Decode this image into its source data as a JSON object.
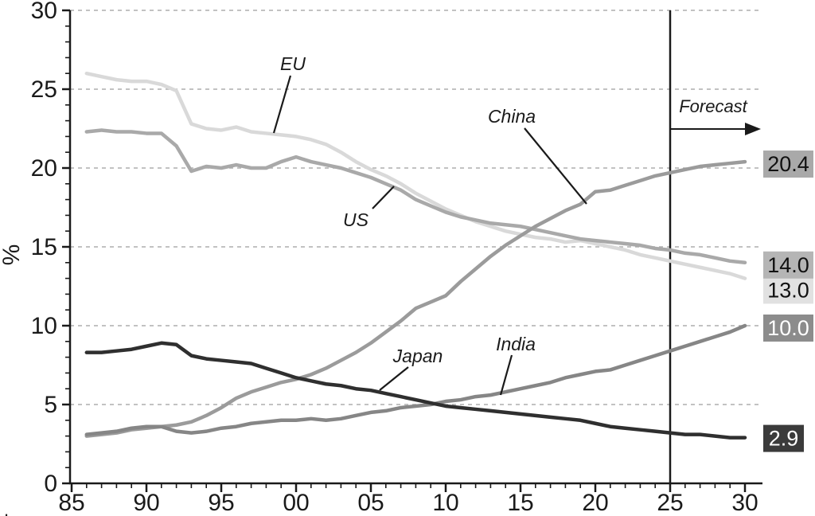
{
  "chart_data": {
    "type": "line",
    "title": "",
    "ylabel": "%",
    "xlim": [
      1985,
      2030.5
    ],
    "ylim": [
      0,
      30
    ],
    "grid": "horizontal dashed lines at 5,10,15,20,25,30",
    "legend_position": "inline annotations with pointer lines",
    "x_tick_years": [
      1985,
      1990,
      1995,
      2000,
      2005,
      2010,
      2015,
      2020,
      2025,
      2030
    ],
    "x_tick_labels": [
      "85",
      "90",
      "95",
      "00",
      "05",
      "10",
      "15",
      "20",
      "25",
      "30"
    ],
    "y_tick_values": [
      0,
      5,
      10,
      15,
      20,
      25,
      30
    ],
    "y_tick_labels": [
      "0",
      "5",
      "10",
      "15",
      "20",
      "25",
      "30"
    ],
    "forecast": {
      "label": "Forecast",
      "x": 2025
    },
    "corner_mark": ".",
    "years": [
      1986,
      1987,
      1988,
      1989,
      1990,
      1991,
      1992,
      1993,
      1994,
      1995,
      1996,
      1997,
      1998,
      1999,
      2000,
      2001,
      2002,
      2003,
      2004,
      2005,
      2006,
      2007,
      2008,
      2009,
      2010,
      2011,
      2012,
      2013,
      2014,
      2015,
      2016,
      2017,
      2018,
      2019,
      2020,
      2021,
      2022,
      2023,
      2024,
      2025,
      2026,
      2027,
      2028,
      2029,
      2030
    ],
    "series": [
      {
        "name": "EU",
        "color": "#d9d9d9",
        "end_label": "13.0",
        "end_box_bg": "#e1e1e1",
        "end_box_fg": "#111111",
        "values": [
          26.0,
          25.8,
          25.6,
          25.5,
          25.5,
          25.3,
          24.9,
          22.8,
          22.5,
          22.4,
          22.6,
          22.3,
          22.2,
          22.1,
          22.0,
          21.8,
          21.5,
          21.0,
          20.4,
          19.9,
          19.5,
          19.0,
          18.4,
          17.9,
          17.4,
          17.0,
          16.6,
          16.3,
          16.0,
          15.8,
          15.6,
          15.5,
          15.3,
          15.4,
          15.2,
          15.0,
          14.8,
          14.5,
          14.3,
          14.1,
          13.9,
          13.7,
          13.5,
          13.3,
          13.0
        ]
      },
      {
        "name": "US",
        "color": "#a9a9a9",
        "end_label": "14.0",
        "end_box_bg": "#b5b5b5",
        "end_box_fg": "#111111",
        "values": [
          22.3,
          22.4,
          22.3,
          22.3,
          22.2,
          22.2,
          21.4,
          19.8,
          20.1,
          20.0,
          20.2,
          20.0,
          20.0,
          20.4,
          20.7,
          20.4,
          20.2,
          20.0,
          19.7,
          19.4,
          19.0,
          18.6,
          18.0,
          17.6,
          17.2,
          16.9,
          16.7,
          16.5,
          16.4,
          16.3,
          16.1,
          15.9,
          15.7,
          15.5,
          15.4,
          15.3,
          15.2,
          15.1,
          14.9,
          14.8,
          14.6,
          14.5,
          14.3,
          14.1,
          14.0
        ]
      },
      {
        "name": "China",
        "color": "#9b9b9b",
        "end_label": "20.4",
        "end_box_bg": "#a9a9a9",
        "end_box_fg": "#111111",
        "values": [
          3.0,
          3.1,
          3.2,
          3.4,
          3.5,
          3.6,
          3.7,
          3.9,
          4.3,
          4.8,
          5.4,
          5.8,
          6.1,
          6.4,
          6.6,
          6.9,
          7.3,
          7.8,
          8.3,
          8.9,
          9.6,
          10.3,
          11.1,
          11.5,
          11.9,
          12.8,
          13.6,
          14.4,
          15.1,
          15.7,
          16.3,
          16.8,
          17.3,
          17.7,
          18.5,
          18.6,
          18.9,
          19.2,
          19.5,
          19.7,
          19.9,
          20.1,
          20.2,
          20.3,
          20.4
        ]
      },
      {
        "name": "India",
        "color": "#868686",
        "end_label": "10.0",
        "end_box_bg": "#8c8c8c",
        "end_box_fg": "#ffffff",
        "values": [
          3.1,
          3.2,
          3.3,
          3.5,
          3.6,
          3.6,
          3.3,
          3.2,
          3.3,
          3.5,
          3.6,
          3.8,
          3.9,
          4.0,
          4.0,
          4.1,
          4.0,
          4.1,
          4.3,
          4.5,
          4.6,
          4.8,
          4.9,
          5.0,
          5.2,
          5.3,
          5.5,
          5.6,
          5.8,
          6.0,
          6.2,
          6.4,
          6.7,
          6.9,
          7.1,
          7.2,
          7.5,
          7.8,
          8.1,
          8.4,
          8.7,
          9.0,
          9.3,
          9.6,
          10.0
        ]
      },
      {
        "name": "Japan",
        "color": "#2f2f2f",
        "end_label": "2.9",
        "end_box_bg": "#3b3b3b",
        "end_box_fg": "#ffffff",
        "values": [
          8.3,
          8.3,
          8.4,
          8.5,
          8.7,
          8.9,
          8.8,
          8.1,
          7.9,
          7.8,
          7.7,
          7.6,
          7.3,
          7.0,
          6.7,
          6.5,
          6.3,
          6.2,
          6.0,
          5.9,
          5.7,
          5.5,
          5.3,
          5.1,
          4.9,
          4.8,
          4.7,
          4.6,
          4.5,
          4.4,
          4.3,
          4.2,
          4.1,
          4.0,
          3.8,
          3.6,
          3.5,
          3.4,
          3.3,
          3.2,
          3.1,
          3.1,
          3.0,
          2.9,
          2.9
        ]
      }
    ]
  }
}
